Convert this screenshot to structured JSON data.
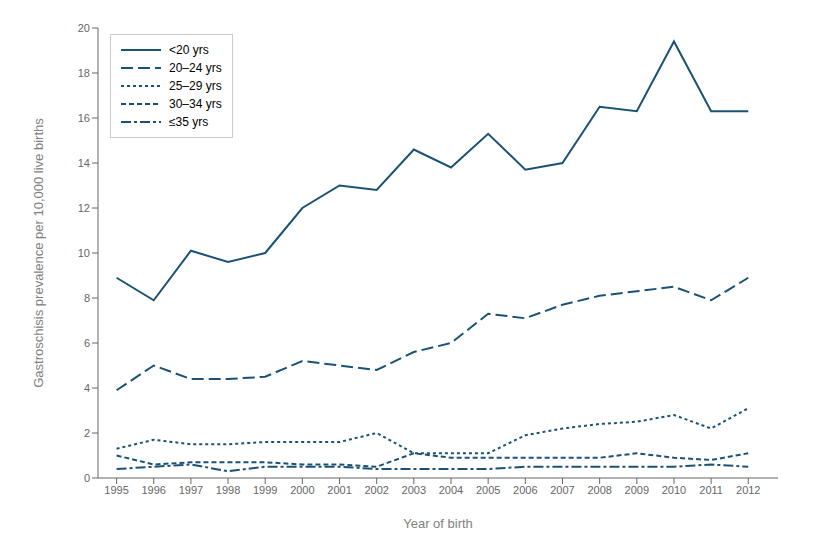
{
  "chart_data": {
    "type": "line",
    "xlabel": "Year of birth",
    "ylabel": "Gastroschisis prevalence per 10,000 live births",
    "x": [
      1995,
      1996,
      1997,
      1998,
      1999,
      2000,
      2001,
      2002,
      2003,
      2004,
      2005,
      2006,
      2007,
      2008,
      2009,
      2010,
      2011,
      2012
    ],
    "series": [
      {
        "name": "<20 yrs",
        "color": "#1a5276",
        "line_style": "solid",
        "values": [
          8.9,
          7.9,
          10.1,
          9.6,
          10.0,
          12.0,
          13.0,
          12.8,
          14.6,
          13.8,
          15.3,
          13.7,
          14.0,
          16.5,
          16.3,
          19.4,
          16.3,
          16.3
        ]
      },
      {
        "name": "20–24 yrs",
        "color": "#1a5276",
        "line_style": "long_dash",
        "values": [
          3.9,
          5.0,
          4.4,
          4.4,
          4.5,
          5.2,
          5.0,
          4.8,
          5.6,
          6.0,
          7.3,
          7.1,
          7.7,
          8.1,
          8.3,
          8.5,
          7.9,
          8.9
        ]
      },
      {
        "name": "25–29 yrs",
        "color": "#1a5276",
        "line_style": "dotted",
        "values": [
          1.3,
          1.7,
          1.5,
          1.5,
          1.6,
          1.6,
          1.6,
          2.0,
          1.1,
          1.1,
          1.1,
          1.9,
          2.2,
          2.4,
          2.5,
          2.8,
          2.2,
          3.1
        ]
      },
      {
        "name": "30–34 yrs",
        "color": "#1a5276",
        "line_style": "dashed",
        "values": [
          1.0,
          0.6,
          0.7,
          0.7,
          0.7,
          0.6,
          0.6,
          0.5,
          1.1,
          0.9,
          0.9,
          0.9,
          0.9,
          0.9,
          1.1,
          0.9,
          0.8,
          1.1
        ]
      },
      {
        "name": "≤35 yrs",
        "color": "#1a5276",
        "line_style": "dashdot",
        "values": [
          0.4,
          0.5,
          0.6,
          0.3,
          0.5,
          0.5,
          0.5,
          0.4,
          0.4,
          0.4,
          0.4,
          0.5,
          0.5,
          0.5,
          0.5,
          0.5,
          0.6,
          0.5
        ]
      }
    ],
    "xlim": [
      1994.5,
      2012.8
    ],
    "xticks": [
      1995,
      1996,
      1997,
      1998,
      1999,
      2000,
      2001,
      2002,
      2003,
      2004,
      2005,
      2006,
      2007,
      2008,
      2009,
      2010,
      2011,
      2012
    ],
    "ylim": [
      0,
      20
    ],
    "yticks": [
      0,
      2,
      4,
      6,
      8,
      10,
      12,
      14,
      16,
      18,
      20
    ],
    "grid": false,
    "legend": "upper left"
  }
}
